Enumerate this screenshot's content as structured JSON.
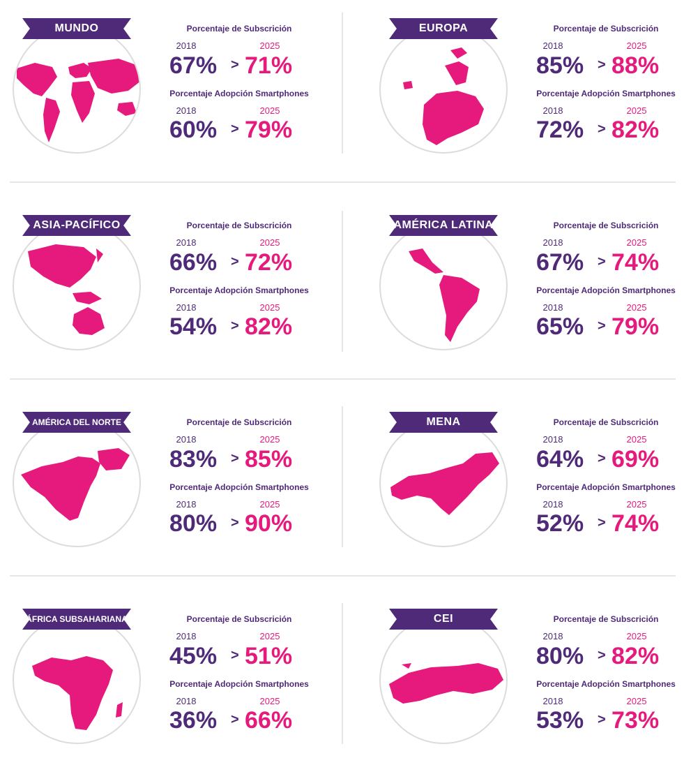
{
  "labels": {
    "subscription": "Porcentaje de Subscrición",
    "adoption": "Porcentaje Adopción Smartphones",
    "year_a": "2018",
    "year_b": "2025",
    "arrow": ">"
  },
  "colors": {
    "purple": "#4f2a78",
    "magenta": "#e6197d"
  },
  "regions": [
    {
      "name": "MUNDO",
      "sub_2018": "67%",
      "sub_2025": "71%",
      "adopt_2018": "60%",
      "adopt_2025": "79%",
      "map": "world-map"
    },
    {
      "name": "EUROPA",
      "sub_2018": "85%",
      "sub_2025": "88%",
      "adopt_2018": "72%",
      "adopt_2025": "82%",
      "map": "europe-map"
    },
    {
      "name": "ASIA-PACÍFICO",
      "sub_2018": "66%",
      "sub_2025": "72%",
      "adopt_2018": "54%",
      "adopt_2025": "82%",
      "map": "asia-pacific-map"
    },
    {
      "name": "AMÉRICA LATINA",
      "sub_2018": "67%",
      "sub_2025": "74%",
      "adopt_2018": "65%",
      "adopt_2025": "79%",
      "map": "latin-america-map"
    },
    {
      "name": "AMÉRICA DEL NORTE",
      "sub_2018": "83%",
      "sub_2025": "85%",
      "adopt_2018": "80%",
      "adopt_2025": "90%",
      "map": "north-america-map"
    },
    {
      "name": "MENA",
      "sub_2018": "64%",
      "sub_2025": "69%",
      "adopt_2018": "52%",
      "adopt_2025": "74%",
      "map": "mena-map"
    },
    {
      "name": "ÁFRICA SUBSAHARIANA",
      "sub_2018": "45%",
      "sub_2025": "51%",
      "adopt_2018": "36%",
      "adopt_2025": "66%",
      "map": "sub-saharan-africa-map"
    },
    {
      "name": "CEI",
      "sub_2018": "80%",
      "sub_2025": "82%",
      "adopt_2018": "53%",
      "adopt_2025": "73%",
      "map": "cis-map"
    }
  ]
}
